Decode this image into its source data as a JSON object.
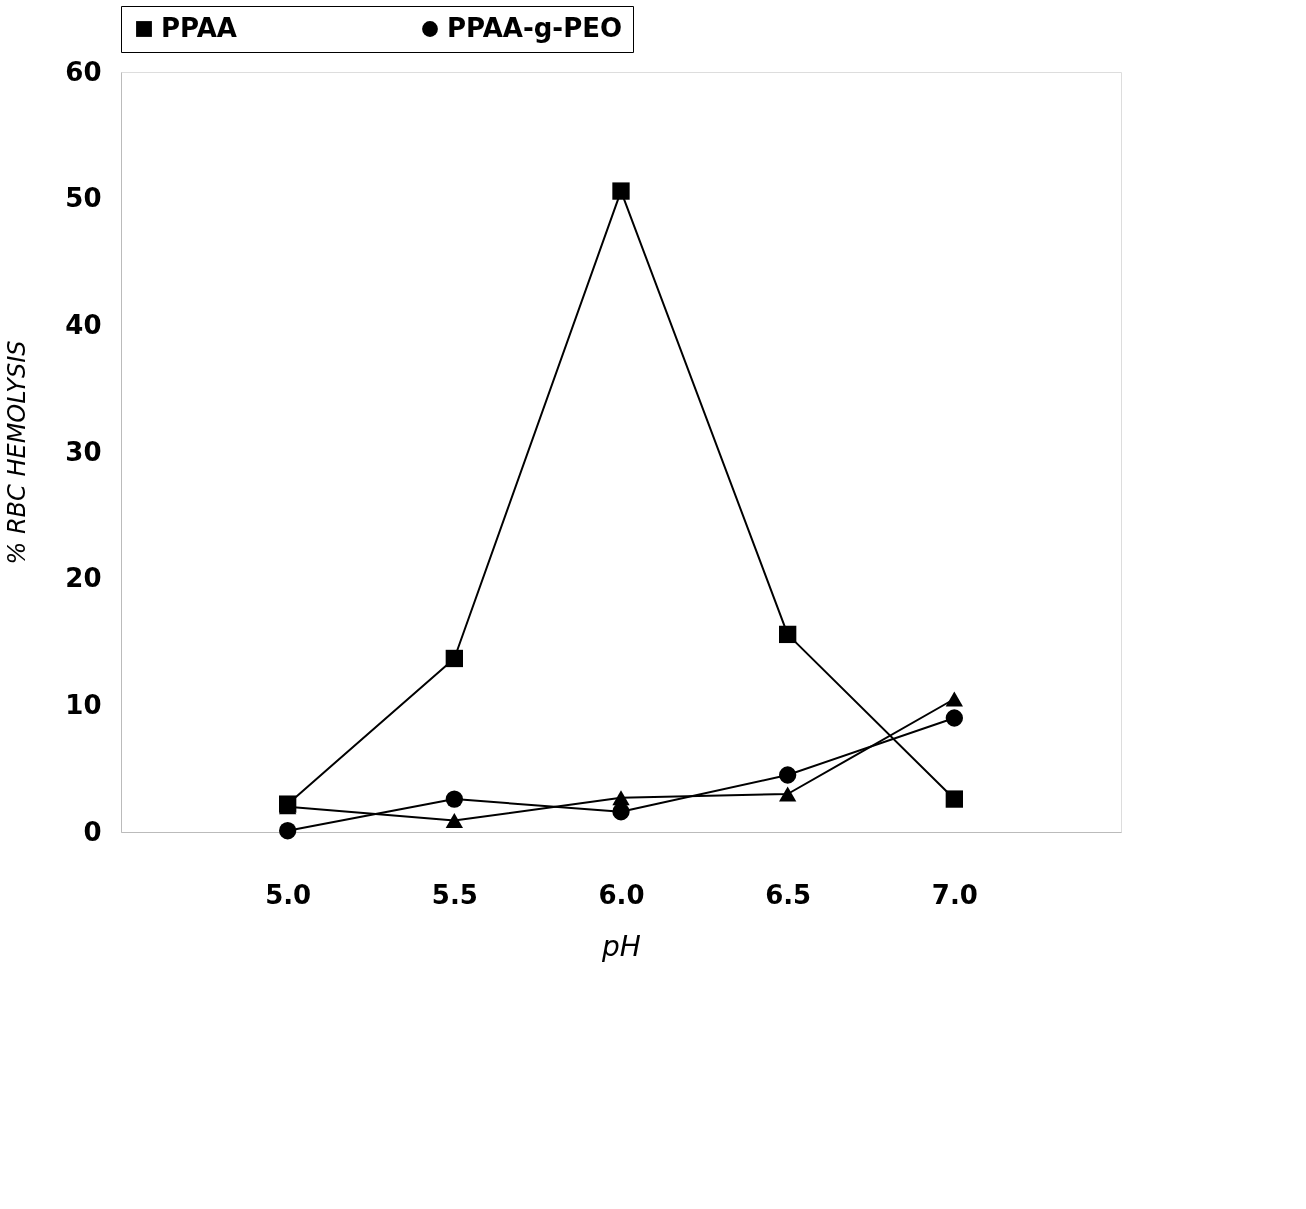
{
  "chart_data": {
    "type": "line",
    "xlabel": "pH",
    "ylabel": "% RBC HEMOLYSIS",
    "categories": [
      "5.0",
      "5.5",
      "6.0",
      "6.5",
      "7.0"
    ],
    "series": [
      {
        "name": "PPAA",
        "color": "#000000",
        "marker": "square",
        "values": [
          2.2,
          13.7,
          50.6,
          15.6,
          2.6
        ]
      },
      {
        "name": "PPAA-g-PEO",
        "color": "#000000",
        "marker": "circle",
        "values": [
          0.1,
          2.6,
          1.6,
          4.5,
          9.0
        ]
      },
      {
        "color": "#000000",
        "marker": "triangle",
        "values": [
          2.0,
          0.9,
          2.7,
          3.0,
          10.5
        ]
      }
    ],
    "ylim": [
      0,
      60
    ],
    "yticks": [
      0,
      10,
      20,
      30,
      40,
      50,
      60
    ],
    "grid": false,
    "legend": "top",
    "line_style": "solid"
  }
}
